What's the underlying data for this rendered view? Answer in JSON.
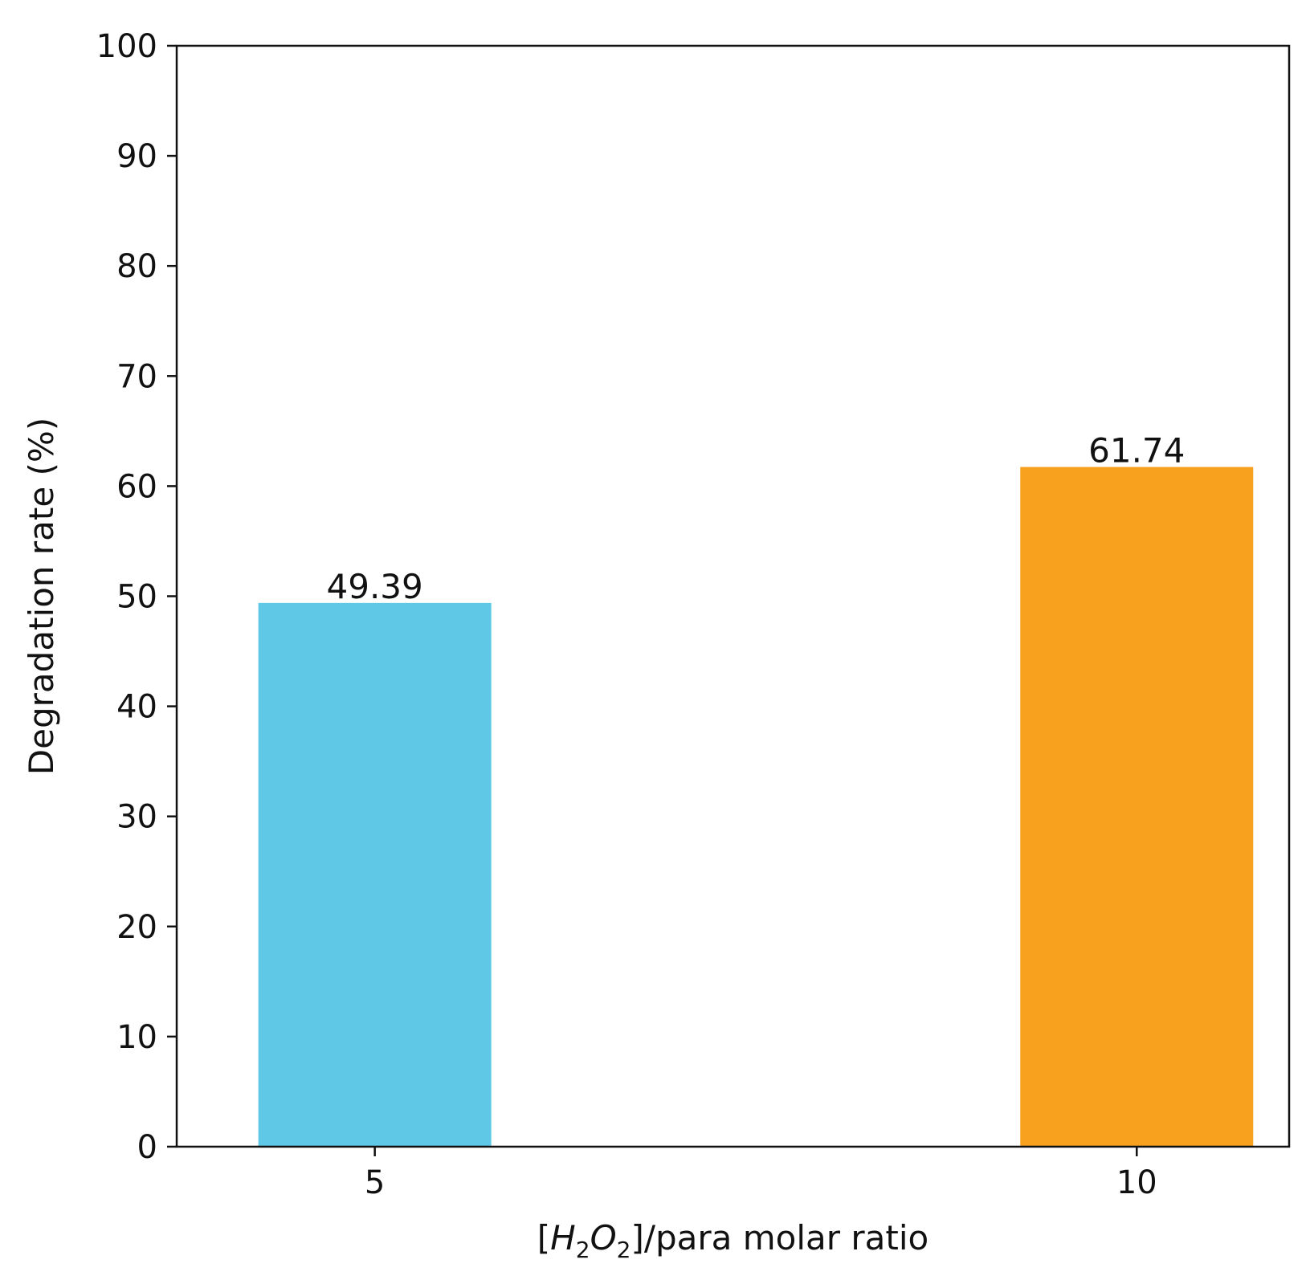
{
  "chart_data": {
    "type": "bar",
    "categories": [
      "5",
      "10"
    ],
    "values": [
      49.39,
      61.74
    ],
    "data_labels": [
      "49.39",
      "61.74"
    ],
    "colors": [
      "#5ec8e6",
      "#f7a11e"
    ],
    "title": "",
    "xlabel_parts": {
      "open": "[",
      "h": "H",
      "sub1": "2",
      "o": "O",
      "sub2": "2",
      "rest": "]/para molar ratio"
    },
    "ylabel": "Degradation rate (%)",
    "ylim": [
      0,
      100
    ],
    "yticks": [
      "0",
      "10",
      "20",
      "30",
      "40",
      "50",
      "60",
      "70",
      "80",
      "90",
      "100"
    ],
    "grid": false,
    "legend": "none"
  }
}
